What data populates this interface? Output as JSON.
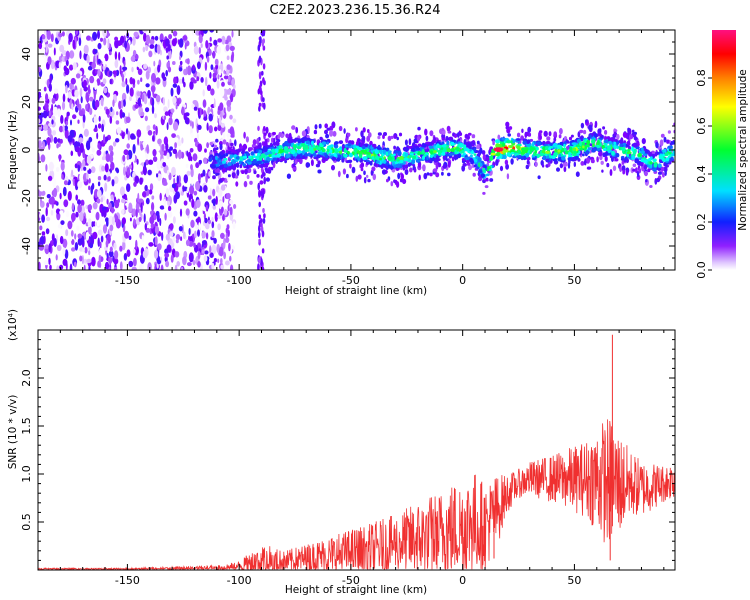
{
  "figure": {
    "title": "C2E2.2023.236.15.36.R24"
  },
  "chart_data": [
    {
      "type": "heatmap",
      "title": "C2E2.2023.236.15.36.R24",
      "xlabel": "Height of straight line (km)",
      "ylabel": "Frequency (Hz)",
      "xlim": [
        -190,
        95
      ],
      "ylim": [
        -50,
        50
      ],
      "xticks": [
        -150,
        -100,
        -50,
        0,
        50
      ],
      "yticks": [
        -40,
        -20,
        0,
        20,
        40
      ],
      "colorbar": {
        "label": "Normalized spectral amplitude",
        "range": [
          0.0,
          1.0
        ],
        "ticks": [
          0.0,
          0.2,
          0.4,
          0.6,
          0.8
        ],
        "tick_labels": [
          "0.0",
          "0.2",
          "0.4",
          "0.6",
          "0.8"
        ],
        "colormap": [
          "#ffffff",
          "#c080ff",
          "#8000ff",
          "#2020ff",
          "#00ffff",
          "#00ff40",
          "#ffff00",
          "#ff8000",
          "#ff0000",
          "#ff1080"
        ]
      },
      "noise_region_x": [
        -190,
        -110
      ],
      "vertical_streaks_x": [
        -90
      ],
      "ridge": {
        "x": [
          -113,
          -100,
          -90,
          -80,
          -70,
          -60,
          -50,
          -40,
          -30,
          -20,
          -10,
          -5,
          0,
          5,
          10,
          15,
          20,
          30,
          40,
          50,
          55,
          60,
          65,
          70,
          80,
          85,
          90,
          95
        ],
        "freq": [
          -5,
          -4,
          -3,
          0,
          1,
          0,
          -1,
          -2,
          -4,
          -2,
          0,
          1,
          0,
          -2,
          -10,
          0,
          1,
          0,
          -1,
          0,
          2,
          3,
          1,
          0,
          -2,
          -6,
          -3,
          0
        ],
        "peak_amplitude": [
          0.35,
          0.4,
          0.45,
          0.5,
          0.55,
          0.5,
          0.55,
          0.6,
          0.55,
          0.5,
          0.55,
          0.6,
          0.5,
          0.45,
          0.45,
          1.0,
          0.9,
          0.6,
          0.6,
          0.6,
          0.6,
          0.55,
          0.5,
          0.55,
          0.5,
          0.5,
          0.5,
          0.5
        ]
      }
    },
    {
      "type": "line",
      "xlabel": "Height of straight line (km)",
      "ylabel": "SNR (10 * v/v)",
      "y_multiplier": "(x10⁴)",
      "xlim": [
        -190,
        95
      ],
      "ylim": [
        0,
        2.5
      ],
      "xticks": [
        -150,
        -100,
        -50,
        0,
        50
      ],
      "yticks": [
        0.5,
        1.0,
        1.5,
        2.0
      ],
      "y_tick_labels": [
        "0.5",
        "1.0",
        "1.5",
        "2.0"
      ],
      "color": "#f03030",
      "envelope": {
        "x": [
          -190,
          -150,
          -110,
          -100,
          -90,
          -80,
          -70,
          -60,
          -50,
          -40,
          -30,
          -20,
          -10,
          -5,
          0,
          5,
          10,
          15,
          20,
          25,
          30,
          40,
          50,
          55,
          60,
          65,
          70,
          75,
          80,
          90,
          95
        ],
        "mean": [
          0.01,
          0.01,
          0.02,
          0.04,
          0.1,
          0.08,
          0.12,
          0.15,
          0.18,
          0.22,
          0.28,
          0.32,
          0.38,
          0.42,
          0.45,
          0.5,
          0.45,
          0.6,
          0.8,
          0.9,
          0.95,
          0.95,
          0.95,
          0.95,
          0.95,
          0.92,
          0.9,
          0.9,
          0.85,
          0.9,
          0.95
        ],
        "amplitude": [
          0.01,
          0.01,
          0.03,
          0.05,
          0.18,
          0.12,
          0.15,
          0.2,
          0.25,
          0.28,
          0.3,
          0.4,
          0.45,
          0.5,
          0.5,
          0.55,
          0.45,
          0.4,
          0.2,
          0.15,
          0.18,
          0.25,
          0.35,
          0.4,
          0.55,
          0.7,
          0.55,
          0.35,
          0.3,
          0.2,
          0.2
        ]
      },
      "spikes": [
        {
          "x": 67,
          "y": 2.45
        },
        {
          "x": 66,
          "y": 0.1
        },
        {
          "x": 9,
          "y": 0.05
        },
        {
          "x": 14,
          "y": 0.12
        }
      ]
    }
  ]
}
